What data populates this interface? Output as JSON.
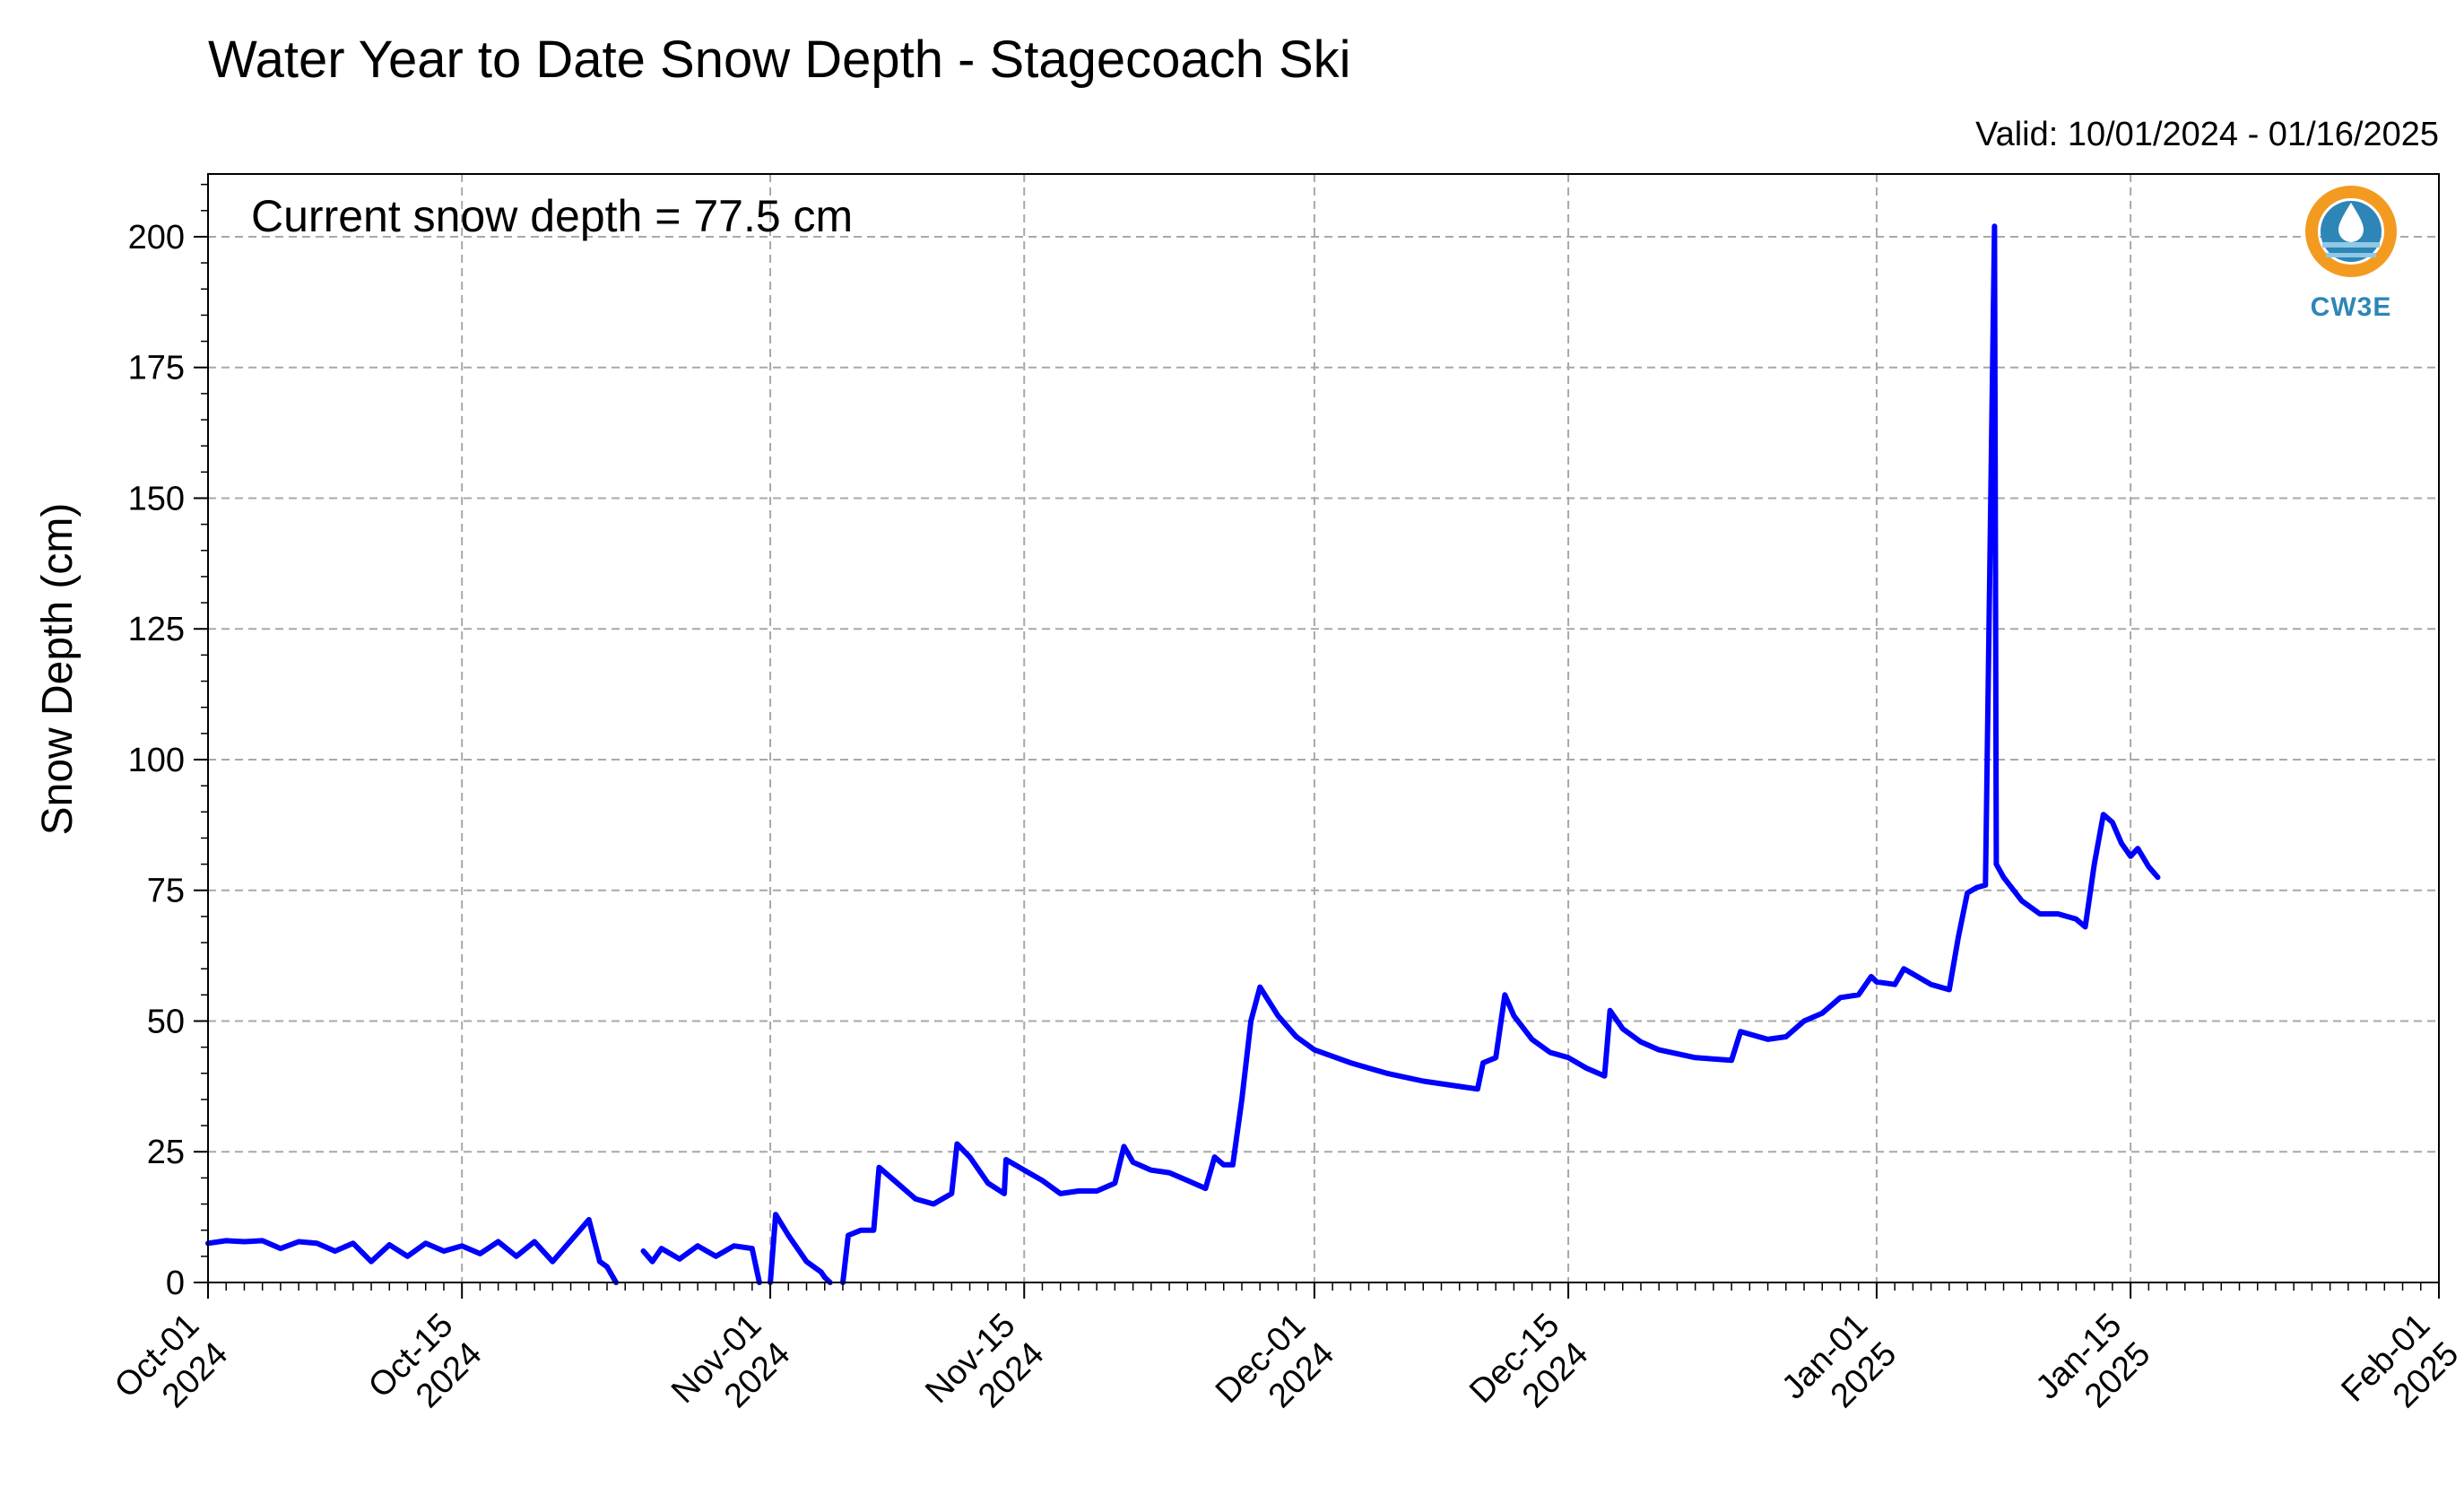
{
  "chart_data": {
    "type": "line",
    "title": "Water Year to Date Snow Depth - Stagecoach Ski",
    "subtitle": "Valid: 10/01/2024 - 01/16/2025",
    "ylabel": "Snow Depth (cm)",
    "xlabel": "",
    "annotation": "Current snow depth = 77.5 cm",
    "ylim": [
      0,
      212
    ],
    "xlim": [
      "2024-10-01",
      "2025-02-01"
    ],
    "y_ticks": [
      0,
      25,
      50,
      75,
      100,
      125,
      150,
      175,
      200
    ],
    "x_ticks": [
      {
        "date": "2024-10-01",
        "line1": "Oct-01",
        "line2": "2024"
      },
      {
        "date": "2024-10-15",
        "line1": "Oct-15",
        "line2": "2024"
      },
      {
        "date": "2024-11-01",
        "line1": "Nov-01",
        "line2": "2024"
      },
      {
        "date": "2024-11-15",
        "line1": "Nov-15",
        "line2": "2024"
      },
      {
        "date": "2024-12-01",
        "line1": "Dec-01",
        "line2": "2024"
      },
      {
        "date": "2024-12-15",
        "line1": "Dec-15",
        "line2": "2024"
      },
      {
        "date": "2025-01-01",
        "line1": "Jan-01",
        "line2": "2025"
      },
      {
        "date": "2025-01-15",
        "line1": "Jan-15",
        "line2": "2025"
      },
      {
        "date": "2025-02-01",
        "line1": "Feb-01",
        "line2": "2025"
      }
    ],
    "grid": true,
    "line_color": "#0000ff",
    "series": [
      {
        "segments": [
          [
            [
              "2024-10-01",
              7.5
            ],
            [
              "2024-10-02",
              8
            ],
            [
              "2024-10-03",
              7.8
            ],
            [
              "2024-10-04",
              8
            ],
            [
              "2024-10-05",
              6.5
            ],
            [
              "2024-10-06",
              7.8
            ],
            [
              "2024-10-07",
              7.5
            ],
            [
              "2024-10-08",
              6
            ],
            [
              "2024-10-09",
              7.5
            ],
            [
              "2024-10-10",
              4
            ],
            [
              "2024-10-11",
              7.2
            ],
            [
              "2024-10-12",
              5
            ],
            [
              "2024-10-13",
              7.5
            ],
            [
              "2024-10-14",
              6
            ],
            [
              "2024-10-15",
              7
            ],
            [
              "2024-10-16",
              5.5
            ],
            [
              "2024-10-17",
              7.8
            ],
            [
              "2024-10-18",
              5
            ],
            [
              "2024-10-19",
              7.8
            ],
            [
              "2024-10-20",
              4
            ],
            [
              "2024-10-21",
              8
            ],
            [
              "2024-10-22",
              12
            ],
            [
              "2024-10-22.6",
              4
            ],
            [
              "2024-10-23",
              3
            ],
            [
              "2024-10-23.5",
              0
            ]
          ],
          [
            [
              "2024-10-25",
              6
            ],
            [
              "2024-10-25.5",
              4
            ],
            [
              "2024-10-26",
              6.5
            ],
            [
              "2024-10-27",
              4.5
            ],
            [
              "2024-10-28",
              7
            ],
            [
              "2024-10-29",
              5
            ],
            [
              "2024-10-30",
              7
            ],
            [
              "2024-10-31",
              6.5
            ],
            [
              "2024-10-31.4",
              0
            ]
          ],
          [
            [
              "2024-11-01",
              0
            ],
            [
              "2024-11-01.3",
              13
            ],
            [
              "2024-11-02",
              9
            ],
            [
              "2024-11-03",
              4
            ],
            [
              "2024-11-03.8",
              2
            ],
            [
              "2024-11-04",
              1
            ],
            [
              "2024-11-04.3",
              0
            ]
          ],
          [
            [
              "2024-11-05",
              0
            ],
            [
              "2024-11-05.3",
              9
            ],
            [
              "2024-11-06",
              10
            ],
            [
              "2024-11-06.7",
              10
            ],
            [
              "2024-11-07",
              22
            ],
            [
              "2024-11-08",
              19
            ],
            [
              "2024-11-09",
              16
            ],
            [
              "2024-11-10",
              15
            ],
            [
              "2024-11-11",
              17
            ],
            [
              "2024-11-11.3",
              26.5
            ],
            [
              "2024-11-12",
              24
            ],
            [
              "2024-11-13",
              19
            ],
            [
              "2024-11-13.9",
              17
            ],
            [
              "2024-11-14",
              23.5
            ],
            [
              "2024-11-15",
              21.5
            ],
            [
              "2024-11-16",
              19.5
            ],
            [
              "2024-11-17",
              17
            ],
            [
              "2024-11-18",
              17.5
            ],
            [
              "2024-11-19",
              17.5
            ],
            [
              "2024-11-20",
              19
            ],
            [
              "2024-11-20.5",
              26
            ],
            [
              "2024-11-21",
              23
            ],
            [
              "2024-11-22",
              21.5
            ],
            [
              "2024-11-23",
              21
            ],
            [
              "2024-11-24",
              19.5
            ],
            [
              "2024-11-25",
              18
            ],
            [
              "2024-11-25.5",
              24
            ],
            [
              "2024-11-26",
              22.5
            ],
            [
              "2024-11-26.5",
              22.5
            ],
            [
              "2024-11-27",
              35
            ],
            [
              "2024-11-27.5",
              50
            ],
            [
              "2024-11-28",
              56.5
            ],
            [
              "2024-11-29",
              51
            ],
            [
              "2024-11-30",
              47
            ],
            [
              "2024-12-01",
              44.5
            ],
            [
              "2024-12-03",
              42
            ],
            [
              "2024-12-05",
              40
            ],
            [
              "2024-12-07",
              38.5
            ],
            [
              "2024-12-09",
              37.5
            ],
            [
              "2024-12-10",
              37
            ],
            [
              "2024-12-10.3",
              42
            ],
            [
              "2024-12-11",
              43
            ],
            [
              "2024-12-11.5",
              55
            ],
            [
              "2024-12-12",
              51
            ],
            [
              "2024-12-13",
              46.5
            ],
            [
              "2024-12-14",
              44
            ],
            [
              "2024-12-15",
              43
            ],
            [
              "2024-12-16",
              41
            ],
            [
              "2024-12-17",
              39.5
            ],
            [
              "2024-12-17.3",
              52
            ],
            [
              "2024-12-18",
              48.5
            ],
            [
              "2024-12-19",
              46
            ],
            [
              "2024-12-20",
              44.5
            ],
            [
              "2024-12-22",
              43
            ],
            [
              "2024-12-24",
              42.5
            ],
            [
              "2024-12-24.5",
              48
            ],
            [
              "2024-12-25",
              47.5
            ],
            [
              "2024-12-26",
              46.5
            ],
            [
              "2024-12-27",
              47
            ],
            [
              "2024-12-28",
              50
            ],
            [
              "2024-12-29",
              51.5
            ],
            [
              "2024-12-30",
              54.5
            ],
            [
              "2024-12-31",
              55
            ],
            [
              "2024-12-31.7",
              58.5
            ],
            [
              "2025-01-01",
              57.5
            ],
            [
              "2025-01-02",
              57
            ],
            [
              "2025-01-02.5",
              60
            ],
            [
              "2025-01-03",
              59
            ],
            [
              "2025-01-04",
              57
            ],
            [
              "2025-01-05",
              56
            ],
            [
              "2025-01-05.5",
              66
            ],
            [
              "2025-01-06",
              74.5
            ],
            [
              "2025-01-06.5",
              75.5
            ],
            [
              "2025-01-07",
              76
            ],
            [
              "2025-01-07.5",
              202
            ],
            [
              "2025-01-07.6",
              80
            ],
            [
              "2025-01-08",
              77.5
            ],
            [
              "2025-01-09",
              73
            ],
            [
              "2025-01-10",
              70.5
            ],
            [
              "2025-01-11",
              70.5
            ],
            [
              "2025-01-12",
              69.5
            ],
            [
              "2025-01-12.5",
              68
            ],
            [
              "2025-01-13",
              80
            ],
            [
              "2025-01-13.5",
              89.5
            ],
            [
              "2025-01-14",
              88
            ],
            [
              "2025-01-14.5",
              84
            ],
            [
              "2025-01-15",
              81.5
            ],
            [
              "2025-01-15.4",
              83
            ],
            [
              "2025-01-16",
              79.5
            ],
            [
              "2025-01-16.5",
              77.5
            ]
          ]
        ]
      }
    ]
  },
  "logo": {
    "text": "CW3E",
    "colors": {
      "orange": "#f39b21",
      "blue": "#2e86b7",
      "light": "#8fc9e5"
    }
  }
}
